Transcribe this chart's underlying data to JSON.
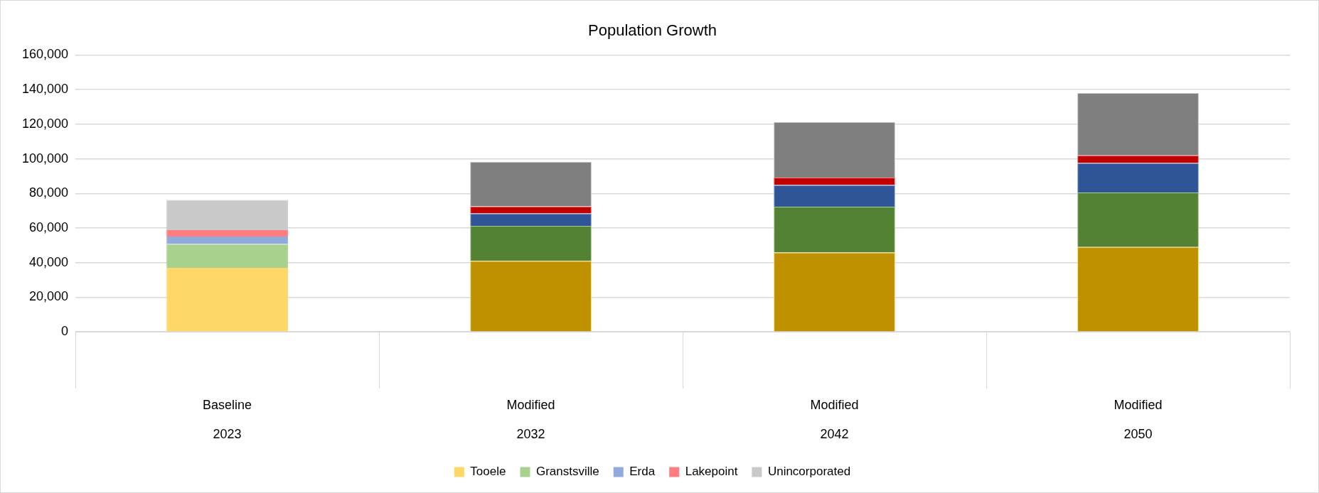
{
  "chart_data": {
    "type": "bar",
    "title": "Population Growth",
    "stacked": true,
    "categories": [
      "Baseline\n2023",
      "Modified\n2032",
      "Modified\n2042",
      "Modified\n2050"
    ],
    "ylim": [
      0,
      160000
    ],
    "yticks": [
      {
        "value": 0,
        "label": "0"
      },
      {
        "value": 20000,
        "label": "20,000"
      },
      {
        "value": 40000,
        "label": "40,000"
      },
      {
        "value": 60000,
        "label": "60,000"
      },
      {
        "value": 80000,
        "label": "80,000"
      },
      {
        "value": 100000,
        "label": "100,000"
      },
      {
        "value": 120000,
        "label": "120,000"
      },
      {
        "value": 140000,
        "label": "140,000"
      },
      {
        "value": 160000,
        "label": "160,000"
      }
    ],
    "grid": "y",
    "legend": "bottom",
    "series": [
      {
        "name": "Tooele",
        "color": "#fdd866",
        "colors": [
          "#fdd866",
          "#bf9000",
          "#bf9000",
          "#bf9000"
        ],
        "values": [
          37000,
          41000,
          45800,
          49000
        ]
      },
      {
        "name": "Granstsville",
        "color": "#a9d18e",
        "colors": [
          "#a9d18e",
          "#548235",
          "#548235",
          "#548235"
        ],
        "values": [
          13800,
          20200,
          26500,
          31500
        ]
      },
      {
        "name": "Erda",
        "color": "#8faadc",
        "colors": [
          "#8faadc",
          "#2f5597",
          "#2f5597",
          "#2f5597"
        ],
        "values": [
          4300,
          7200,
          12500,
          17100
        ]
      },
      {
        "name": "Lakepoint",
        "color": "#ff7c80",
        "colors": [
          "#ff7c80",
          "#c00000",
          "#c00000",
          "#c00000"
        ],
        "values": [
          3700,
          4100,
          4400,
          4400
        ]
      },
      {
        "name": "Unincorporated",
        "color": "#c9c9c9",
        "colors": [
          "#c9c9c9",
          "#7f7f7f",
          "#7f7f7f",
          "#7f7f7f"
        ],
        "values": [
          17400,
          25800,
          32100,
          36000
        ]
      }
    ]
  }
}
